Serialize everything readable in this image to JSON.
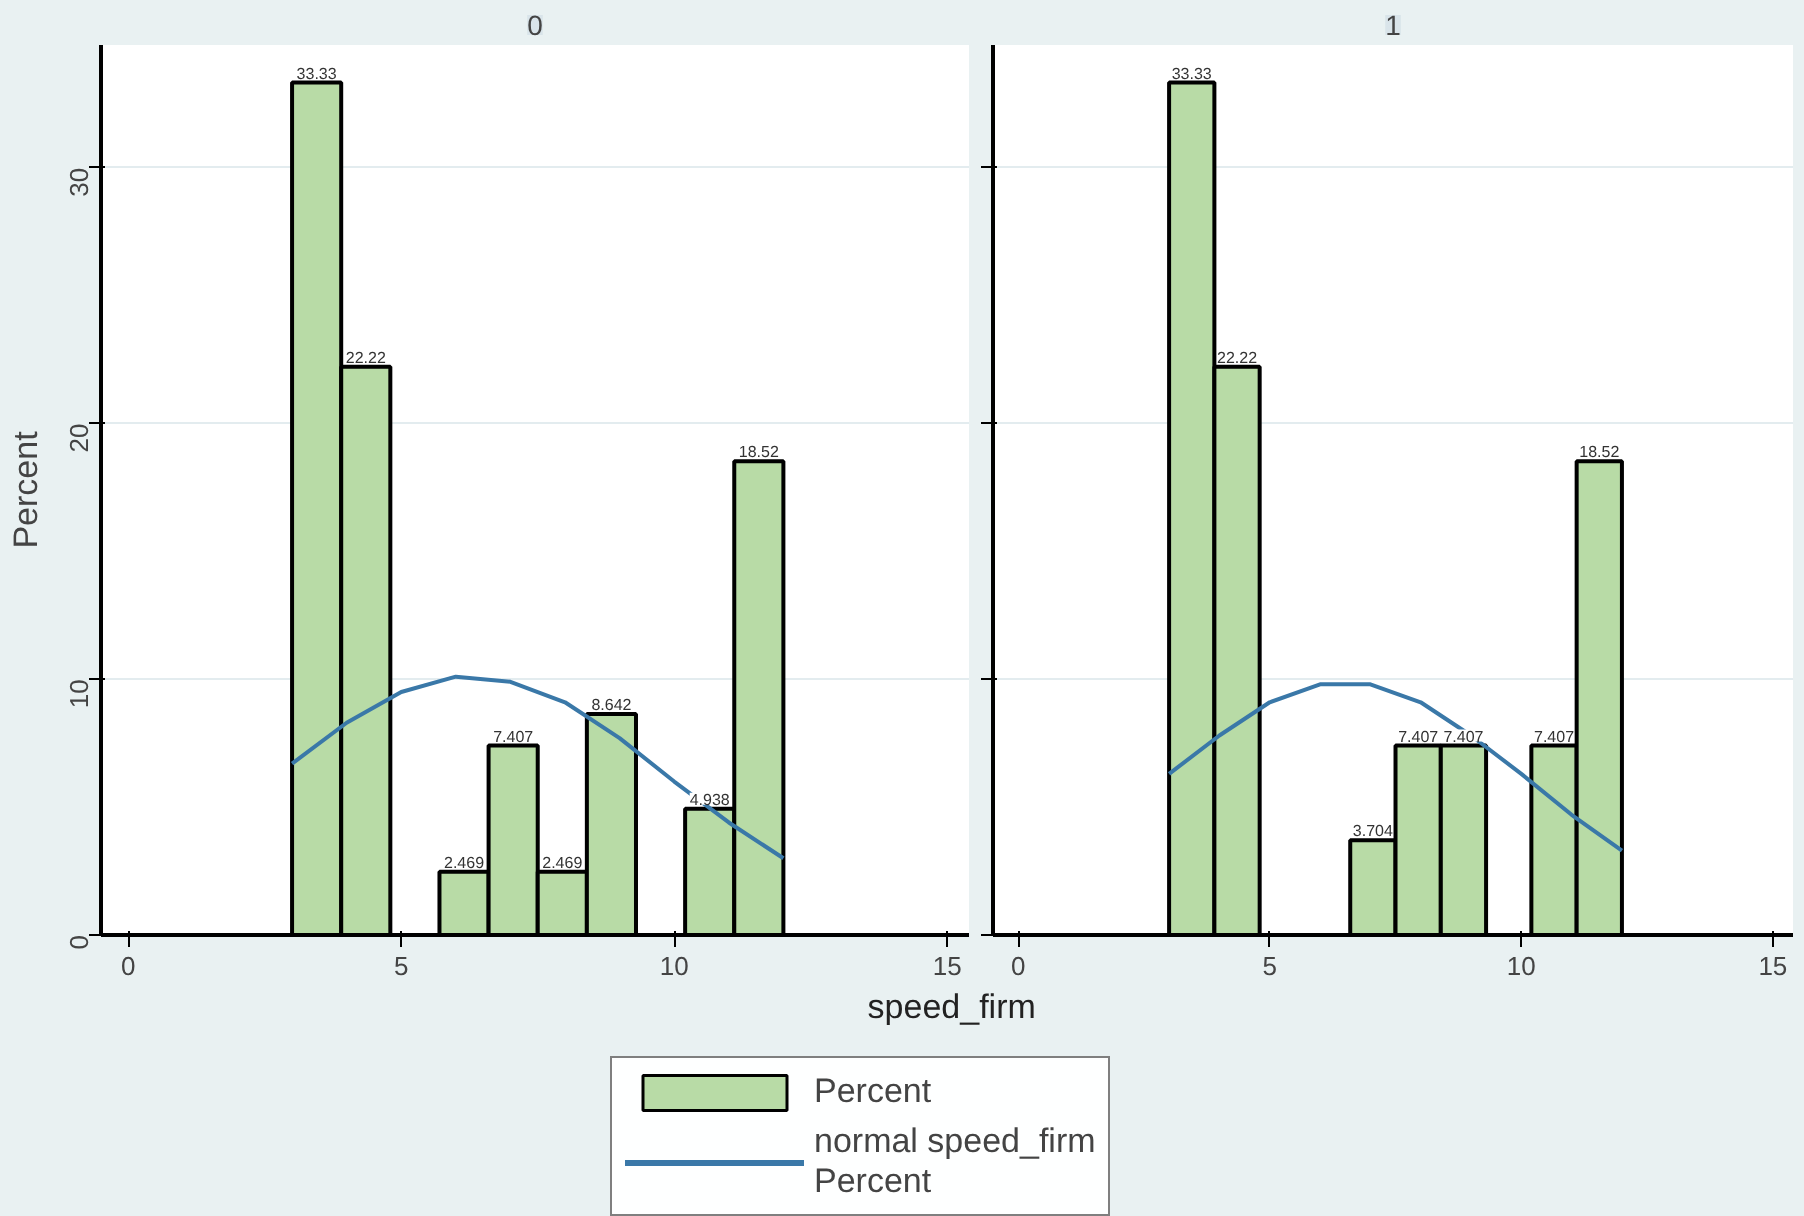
{
  "chart_data": [
    {
      "type": "histogram",
      "title": "0",
      "xlabel": "speed_firm",
      "ylabel": "Percent",
      "bins": [
        3,
        3.9,
        4.8,
        5.7,
        6.6,
        7.5,
        8.4,
        9.3,
        10.2,
        11.1,
        12
      ],
      "xlim": [
        -0.5,
        15.4
      ],
      "ylim": [
        0,
        34.8
      ],
      "xticks": [
        0,
        5,
        10,
        15
      ],
      "yticks": [
        0,
        10,
        20,
        30
      ],
      "grid": "y",
      "legend": "bottom",
      "series": [
        {
          "name": "Percent",
          "color": "#b8dba6",
          "values": [
            33.33,
            22.22,
            0,
            2.469,
            7.407,
            2.469,
            8.642,
            0,
            4.938,
            18.52
          ],
          "value_labels": [
            "33.33",
            "22.22",
            null,
            "2.469",
            "7.407",
            "2.469",
            "8.642",
            null,
            "4.938",
            "18.52"
          ]
        },
        {
          "name": "normal speed_firm\nPercent",
          "type": "line",
          "color": "#3a78a8",
          "x": [
            3,
            4,
            5,
            6,
            7,
            8,
            9,
            10,
            11,
            12
          ],
          "values": [
            6.7,
            8.3,
            9.5,
            10.1,
            9.9,
            9.1,
            7.7,
            6.0,
            4.4,
            3.0
          ]
        }
      ]
    },
    {
      "type": "histogram",
      "title": "1",
      "bins": [
        3,
        3.9,
        4.8,
        5.7,
        6.6,
        7.5,
        8.4,
        9.3,
        10.2,
        11.1,
        12
      ],
      "xlim": [
        -0.5,
        15.4
      ],
      "ylim": [
        0,
        34.8
      ],
      "xticks": [
        0,
        5,
        10,
        15
      ],
      "yticks": [
        0,
        10,
        20,
        30
      ],
      "grid": "y",
      "tick_labels": "x",
      "series": [
        {
          "color": "#b8dba6",
          "values": [
            33.33,
            22.22,
            0,
            0,
            3.704,
            7.407,
            7.407,
            0,
            7.407,
            18.52
          ],
          "value_labels": [
            "33.33",
            "22.22",
            null,
            null,
            "3.704",
            "7.407",
            "7.407",
            null,
            "7.407",
            "18.52"
          ]
        },
        {
          "type": "line",
          "color": "#3a78a8",
          "x": [
            3,
            4,
            5,
            6,
            7,
            8,
            9,
            10,
            11,
            12
          ],
          "values": [
            6.3,
            7.8,
            9.1,
            9.8,
            9.8,
            9.1,
            7.8,
            6.3,
            4.7,
            3.3
          ]
        }
      ]
    }
  ]
}
